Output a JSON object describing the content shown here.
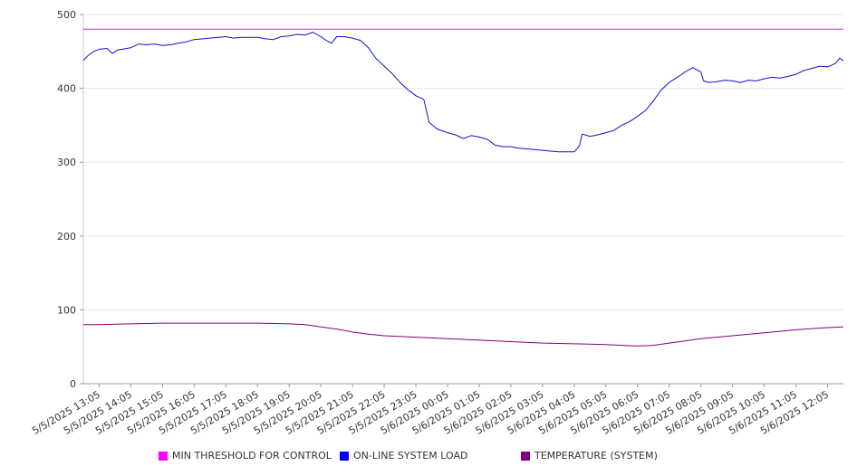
{
  "chart_data": {
    "type": "line",
    "title": "",
    "xlabel": "",
    "ylabel": "",
    "ylim": [
      0,
      500
    ],
    "y_ticks": [
      0,
      100,
      200,
      300,
      400,
      500
    ],
    "grid": "horizontal",
    "legend_position": "bottom",
    "x_ticks": [
      "5/5/2025 13:05",
      "5/5/2025 14:05",
      "5/5/2025 15:05",
      "5/5/2025 16:05",
      "5/5/2025 17:05",
      "5/5/2025 18:05",
      "5/5/2025 19:05",
      "5/5/2025 20:05",
      "5/5/2025 21:05",
      "5/5/2025 22:05",
      "5/5/2025 23:05",
      "5/6/2025 00:05",
      "5/6/2025 01:05",
      "5/6/2025 02:05",
      "5/6/2025 03:05",
      "5/6/2025 04:05",
      "5/6/2025 05:05",
      "5/6/2025 06:05",
      "5/6/2025 07:05",
      "5/6/2025 08:05",
      "5/6/2025 09:05",
      "5/6/2025 10:05",
      "5/6/2025 11:05",
      "5/6/2025 12:05"
    ],
    "x_range": [
      "5/5/2025 12:35",
      "5/6/2025 12:35"
    ],
    "series": [
      {
        "name": "MIN THRESHOLD FOR CONTROL",
        "color": "#e020e0",
        "legend_color": "#ff00ff",
        "points": [
          [
            "5/5/2025 12:35",
            480
          ],
          [
            "5/6/2025 12:35",
            480
          ]
        ]
      },
      {
        "name": "ON-LINE SYSTEM LOAD",
        "color": "#1010d0",
        "legend_color": "#0000ff",
        "points": [
          [
            "5/5/2025 12:35",
            438
          ],
          [
            "5/5/2025 12:45",
            445
          ],
          [
            "5/5/2025 12:55",
            450
          ],
          [
            "5/5/2025 13:05",
            453
          ],
          [
            "5/5/2025 13:20",
            454
          ],
          [
            "5/5/2025 13:30",
            447
          ],
          [
            "5/5/2025 13:40",
            452
          ],
          [
            "5/5/2025 14:05",
            455
          ],
          [
            "5/5/2025 14:20",
            460
          ],
          [
            "5/5/2025 14:35",
            459
          ],
          [
            "5/5/2025 14:50",
            460
          ],
          [
            "5/5/2025 15:05",
            458
          ],
          [
            "5/5/2025 15:20",
            459
          ],
          [
            "5/5/2025 15:35",
            461
          ],
          [
            "5/5/2025 15:50",
            463
          ],
          [
            "5/5/2025 16:05",
            466
          ],
          [
            "5/5/2025 16:35",
            468
          ],
          [
            "5/5/2025 17:05",
            470
          ],
          [
            "5/5/2025 17:20",
            468
          ],
          [
            "5/5/2025 17:35",
            469
          ],
          [
            "5/5/2025 18:05",
            469
          ],
          [
            "5/5/2025 18:20",
            467
          ],
          [
            "5/5/2025 18:35",
            466
          ],
          [
            "5/5/2025 18:50",
            470
          ],
          [
            "5/5/2025 19:05",
            471
          ],
          [
            "5/5/2025 19:20",
            473
          ],
          [
            "5/5/2025 19:35",
            472
          ],
          [
            "5/5/2025 19:50",
            476
          ],
          [
            "5/5/2025 20:05",
            470
          ],
          [
            "5/5/2025 20:15",
            465
          ],
          [
            "5/5/2025 20:25",
            461
          ],
          [
            "5/5/2025 20:35",
            470
          ],
          [
            "5/5/2025 20:50",
            470
          ],
          [
            "5/5/2025 21:05",
            468
          ],
          [
            "5/5/2025 21:20",
            465
          ],
          [
            "5/5/2025 21:35",
            455
          ],
          [
            "5/5/2025 21:50",
            440
          ],
          [
            "5/5/2025 22:05",
            430
          ],
          [
            "5/5/2025 22:20",
            420
          ],
          [
            "5/5/2025 22:35",
            408
          ],
          [
            "5/5/2025 22:50",
            398
          ],
          [
            "5/5/2025 23:05",
            390
          ],
          [
            "5/5/2025 23:20",
            385
          ],
          [
            "5/5/2025 23:30",
            354
          ],
          [
            "5/5/2025 23:45",
            345
          ],
          [
            "5/6/2025 00:05",
            340
          ],
          [
            "5/6/2025 00:20",
            337
          ],
          [
            "5/6/2025 00:35",
            332
          ],
          [
            "5/6/2025 00:50",
            336
          ],
          [
            "5/6/2025 01:05",
            334
          ],
          [
            "5/6/2025 01:20",
            331
          ],
          [
            "5/6/2025 01:35",
            323
          ],
          [
            "5/6/2025 01:50",
            321
          ],
          [
            "5/6/2025 02:05",
            321
          ],
          [
            "5/6/2025 02:20",
            319
          ],
          [
            "5/6/2025 02:35",
            318
          ],
          [
            "5/6/2025 02:50",
            317
          ],
          [
            "5/6/2025 03:05",
            316
          ],
          [
            "5/6/2025 03:20",
            315
          ],
          [
            "5/6/2025 03:35",
            314
          ],
          [
            "5/6/2025 03:50",
            314
          ],
          [
            "5/6/2025 04:05",
            314
          ],
          [
            "5/6/2025 04:15",
            322
          ],
          [
            "5/6/2025 04:20",
            338
          ],
          [
            "5/6/2025 04:35",
            335
          ],
          [
            "5/6/2025 04:50",
            337
          ],
          [
            "5/6/2025 05:05",
            340
          ],
          [
            "5/6/2025 05:20",
            343
          ],
          [
            "5/6/2025 05:35",
            350
          ],
          [
            "5/6/2025 05:50",
            355
          ],
          [
            "5/6/2025 06:05",
            362
          ],
          [
            "5/6/2025 06:20",
            370
          ],
          [
            "5/6/2025 06:35",
            383
          ],
          [
            "5/6/2025 06:50",
            398
          ],
          [
            "5/6/2025 07:05",
            408
          ],
          [
            "5/6/2025 07:20",
            415
          ],
          [
            "5/6/2025 07:35",
            422
          ],
          [
            "5/6/2025 07:50",
            428
          ],
          [
            "5/6/2025 08:05",
            422
          ],
          [
            "5/6/2025 08:10",
            410
          ],
          [
            "5/6/2025 08:20",
            408
          ],
          [
            "5/6/2025 08:35",
            409
          ],
          [
            "5/6/2025 08:50",
            411
          ],
          [
            "5/6/2025 09:05",
            410
          ],
          [
            "5/6/2025 09:20",
            408
          ],
          [
            "5/6/2025 09:35",
            411
          ],
          [
            "5/6/2025 09:50",
            410
          ],
          [
            "5/6/2025 10:05",
            413
          ],
          [
            "5/6/2025 10:20",
            415
          ],
          [
            "5/6/2025 10:35",
            414
          ],
          [
            "5/6/2025 10:50",
            416
          ],
          [
            "5/6/2025 11:05",
            419
          ],
          [
            "5/6/2025 11:20",
            424
          ],
          [
            "5/6/2025 11:35",
            427
          ],
          [
            "5/6/2025 11:50",
            430
          ],
          [
            "5/6/2025 12:05",
            429
          ],
          [
            "5/6/2025 12:20",
            434
          ],
          [
            "5/6/2025 12:28",
            441
          ],
          [
            "5/6/2025 12:35",
            437
          ]
        ]
      },
      {
        "name": "TEMPERATURE (SYSTEM)",
        "color": "#800080",
        "legend_color": "#800080",
        "points": [
          [
            "5/5/2025 12:35",
            80
          ],
          [
            "5/5/2025 13:05",
            80
          ],
          [
            "5/5/2025 14:05",
            81
          ],
          [
            "5/5/2025 15:05",
            82
          ],
          [
            "5/5/2025 16:05",
            82
          ],
          [
            "5/5/2025 17:05",
            82
          ],
          [
            "5/5/2025 18:05",
            82
          ],
          [
            "5/5/2025 19:05",
            81
          ],
          [
            "5/5/2025 19:35",
            80
          ],
          [
            "5/5/2025 20:05",
            77
          ],
          [
            "5/5/2025 20:35",
            74
          ],
          [
            "5/5/2025 21:05",
            70
          ],
          [
            "5/5/2025 21:35",
            67
          ],
          [
            "5/5/2025 22:05",
            65
          ],
          [
            "5/5/2025 23:05",
            63
          ],
          [
            "5/6/2025 00:05",
            61
          ],
          [
            "5/6/2025 01:05",
            59
          ],
          [
            "5/6/2025 02:05",
            57
          ],
          [
            "5/6/2025 03:05",
            55
          ],
          [
            "5/6/2025 04:05",
            54
          ],
          [
            "5/6/2025 05:05",
            53
          ],
          [
            "5/6/2025 06:05",
            51
          ],
          [
            "5/6/2025 06:35",
            52
          ],
          [
            "5/6/2025 07:05",
            55
          ],
          [
            "5/6/2025 07:35",
            58
          ],
          [
            "5/6/2025 08:05",
            61
          ],
          [
            "5/6/2025 08:35",
            63
          ],
          [
            "5/6/2025 09:05",
            65
          ],
          [
            "5/6/2025 10:05",
            69
          ],
          [
            "5/6/2025 11:05",
            73
          ],
          [
            "5/6/2025 12:05",
            76
          ],
          [
            "5/6/2025 12:35",
            77
          ]
        ]
      }
    ]
  }
}
